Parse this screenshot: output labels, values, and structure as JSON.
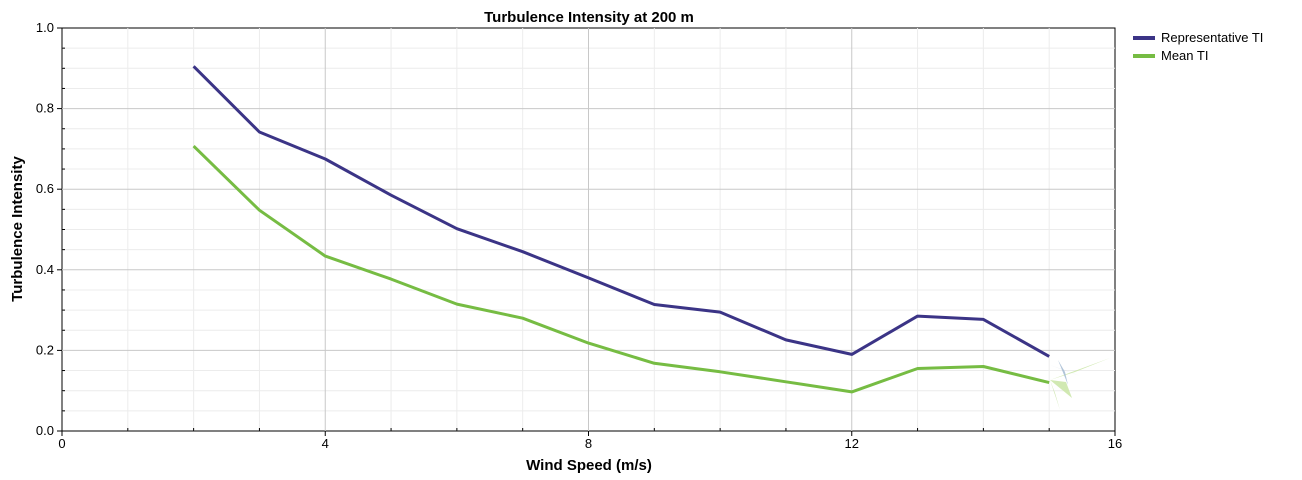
{
  "chart_data": {
    "type": "line",
    "title": "Turbulence Intensity at 200 m",
    "xlabel": "Wind Speed (m/s)",
    "ylabel": "Turbulence Intensity",
    "xlim": [
      0,
      16
    ],
    "ylim": [
      0,
      1.0
    ],
    "x_ticks": [
      "0",
      "4",
      "8",
      "12",
      "16"
    ],
    "y_ticks": [
      "0.0",
      "0.2",
      "0.4",
      "0.6",
      "0.8",
      "1.0"
    ],
    "grid": true,
    "legend_position": "top-right, outside plot",
    "series": [
      {
        "name": "Representative TI",
        "color": "#3b3486",
        "x": [
          2,
          3,
          4,
          5,
          6,
          7,
          8,
          9,
          10,
          11,
          12,
          13,
          14,
          15
        ],
        "y": [
          0.905,
          0.742,
          0.675,
          0.585,
          0.502,
          0.445,
          0.38,
          0.314,
          0.295,
          0.226,
          0.19,
          0.285,
          0.277,
          0.185
        ]
      },
      {
        "name": "Mean TI",
        "color": "#76bc43",
        "x": [
          2,
          3,
          4,
          5,
          6,
          7,
          8,
          9,
          10,
          11,
          12,
          13,
          14,
          15
        ],
        "y": [
          0.707,
          0.548,
          0.434,
          0.377,
          0.315,
          0.28,
          0.218,
          0.168,
          0.147,
          0.122,
          0.097,
          0.155,
          0.16,
          0.12
        ]
      }
    ]
  }
}
